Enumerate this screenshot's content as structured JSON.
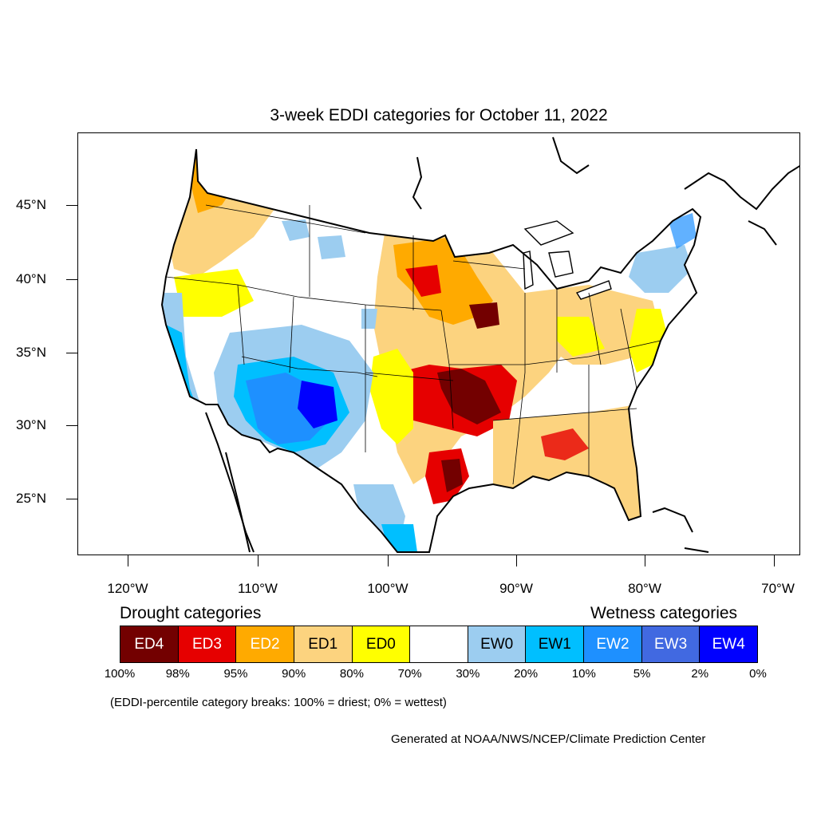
{
  "title": "3-week EDDI categories for October 11, 2022",
  "latitude_labels": [
    "45°N",
    "40°N",
    "35°N",
    "30°N",
    "25°N"
  ],
  "longitude_labels": [
    "120°W",
    "110°W",
    "100°W",
    "90°W",
    "80°W",
    "70°W"
  ],
  "legend": {
    "drought_heading": "Drought categories",
    "wetness_heading": "Wetness categories",
    "categories": [
      {
        "label": "ED4",
        "color": "#730000",
        "text_color": "#ffffff"
      },
      {
        "label": "ED3",
        "color": "#e60000",
        "text_color": "#ffffff"
      },
      {
        "label": "ED2",
        "color": "#ffaa00",
        "text_color": "#ffffff"
      },
      {
        "label": "ED1",
        "color": "#fcd37f",
        "text_color": "#000000"
      },
      {
        "label": "ED0",
        "color": "#ffff00",
        "text_color": "#000000"
      },
      {
        "label": "",
        "color": "#ffffff",
        "text_color": "#000000"
      },
      {
        "label": "EW0",
        "color": "#9ccdf0",
        "text_color": "#000000"
      },
      {
        "label": "EW1",
        "color": "#00bfff",
        "text_color": "#000000"
      },
      {
        "label": "EW2",
        "color": "#1e90ff",
        "text_color": "#ffffff"
      },
      {
        "label": "EW3",
        "color": "#4169e1",
        "text_color": "#ffffff"
      },
      {
        "label": "EW4",
        "color": "#0000ff",
        "text_color": "#ffffff"
      }
    ],
    "breaks": [
      "100%",
      "98%",
      "95%",
      "90%",
      "80%",
      "70%",
      "30%",
      "20%",
      "10%",
      "5%",
      "2%",
      "0%"
    ]
  },
  "note": "(EDDI-percentile category breaks: 100% = driest; 0% = wettest)",
  "credit": "Generated at NOAA/NWS/NCEP/Climate Prediction Center"
}
